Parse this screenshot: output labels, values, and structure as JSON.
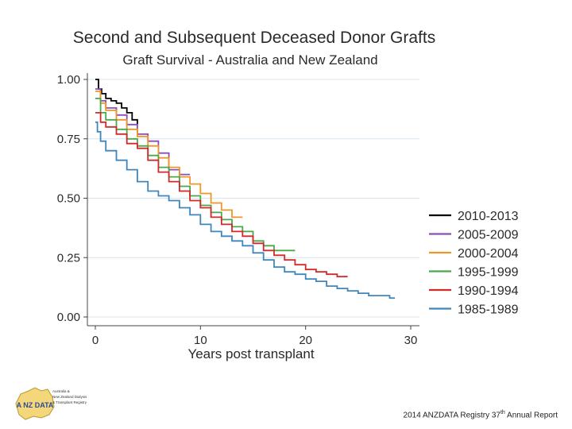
{
  "chart_data": {
    "type": "line",
    "step": true,
    "title": "Second and Subsequent Deceased Donor Grafts",
    "subtitle": "Graft Survival - Australia and New Zealand",
    "xlabel": "Years post transplant",
    "ylabel": "",
    "xlim": [
      0,
      30
    ],
    "ylim": [
      0,
      1
    ],
    "xticks": [
      "0",
      "10",
      "20",
      "30"
    ],
    "yticks": [
      "0.00",
      "0.25",
      "0.50",
      "0.75",
      "1.00"
    ],
    "grid": true,
    "legend_position": "right",
    "series": [
      {
        "name": "2010-2013",
        "color": "#000000",
        "x": [
          0,
          0.3,
          0.6,
          1.0,
          1.5,
          2.0,
          2.5,
          3.0,
          3.5,
          4.0
        ],
        "y": [
          1.0,
          0.96,
          0.94,
          0.92,
          0.91,
          0.9,
          0.88,
          0.86,
          0.83,
          0.81
        ]
      },
      {
        "name": "2005-2009",
        "color": "#8a4fb0",
        "x": [
          0,
          0.5,
          1.0,
          2.0,
          3.0,
          4.0,
          5.0,
          6.0,
          7.0,
          8.0,
          9.0
        ],
        "y": [
          0.96,
          0.91,
          0.88,
          0.85,
          0.81,
          0.77,
          0.74,
          0.69,
          0.62,
          0.6,
          0.6
        ]
      },
      {
        "name": "2000-2004",
        "color": "#f0952a",
        "x": [
          0,
          0.5,
          1.0,
          2.0,
          3.0,
          4.0,
          5.0,
          6.0,
          7.0,
          8.0,
          9.0,
          10.0,
          11.0,
          12.0,
          13.0,
          14.0
        ],
        "y": [
          0.95,
          0.9,
          0.87,
          0.83,
          0.79,
          0.76,
          0.72,
          0.67,
          0.63,
          0.59,
          0.56,
          0.52,
          0.48,
          0.45,
          0.42,
          0.42
        ]
      },
      {
        "name": "1995-1999",
        "color": "#4aa84a",
        "x": [
          0,
          0.5,
          1.0,
          2.0,
          3.0,
          4.0,
          5.0,
          6.0,
          7.0,
          8.0,
          9.0,
          10.0,
          11.0,
          12.0,
          13.0,
          14.0,
          15.0,
          16.0,
          17.0,
          18.0,
          19.0
        ],
        "y": [
          0.92,
          0.86,
          0.83,
          0.79,
          0.75,
          0.72,
          0.68,
          0.63,
          0.59,
          0.55,
          0.51,
          0.47,
          0.44,
          0.41,
          0.38,
          0.36,
          0.32,
          0.3,
          0.28,
          0.28,
          0.28
        ]
      },
      {
        "name": "1990-1994",
        "color": "#d02a2a",
        "x": [
          0,
          0.5,
          1.0,
          2.0,
          3.0,
          4.0,
          5.0,
          6.0,
          7.0,
          8.0,
          9.0,
          10.0,
          11.0,
          12.0,
          13.0,
          14.0,
          15.0,
          16.0,
          17.0,
          18.0,
          19.0,
          20.0,
          21.0,
          22.0,
          23.0,
          24.0
        ],
        "y": [
          0.86,
          0.82,
          0.8,
          0.77,
          0.73,
          0.71,
          0.66,
          0.61,
          0.57,
          0.53,
          0.49,
          0.46,
          0.42,
          0.39,
          0.36,
          0.34,
          0.31,
          0.28,
          0.26,
          0.24,
          0.22,
          0.2,
          0.19,
          0.18,
          0.17,
          0.17
        ]
      },
      {
        "name": "1985-1989",
        "color": "#3f86bd",
        "x": [
          0,
          0.2,
          0.5,
          1.0,
          2.0,
          3.0,
          4.0,
          5.0,
          6.0,
          7.0,
          8.0,
          9.0,
          10.0,
          11.0,
          12.0,
          13.0,
          14.0,
          15.0,
          16.0,
          17.0,
          18.0,
          19.0,
          20.0,
          21.0,
          22.0,
          23.0,
          24.0,
          25.0,
          26.0,
          27.0,
          28.0,
          28.5
        ],
        "y": [
          0.82,
          0.78,
          0.74,
          0.7,
          0.66,
          0.62,
          0.57,
          0.53,
          0.51,
          0.49,
          0.46,
          0.43,
          0.39,
          0.36,
          0.34,
          0.32,
          0.3,
          0.27,
          0.24,
          0.21,
          0.19,
          0.18,
          0.16,
          0.15,
          0.13,
          0.12,
          0.11,
          0.1,
          0.09,
          0.09,
          0.08,
          0.08
        ]
      }
    ]
  },
  "logo": {
    "badge_text": "A NZ DATA",
    "lines": [
      "Australia &",
      "New Zealand Dialysis",
      "& Transplant Registry"
    ]
  },
  "footer": {
    "pre": "2014 ANZDATA Registry 37",
    "sup": "th",
    "post": " Annual Report"
  }
}
